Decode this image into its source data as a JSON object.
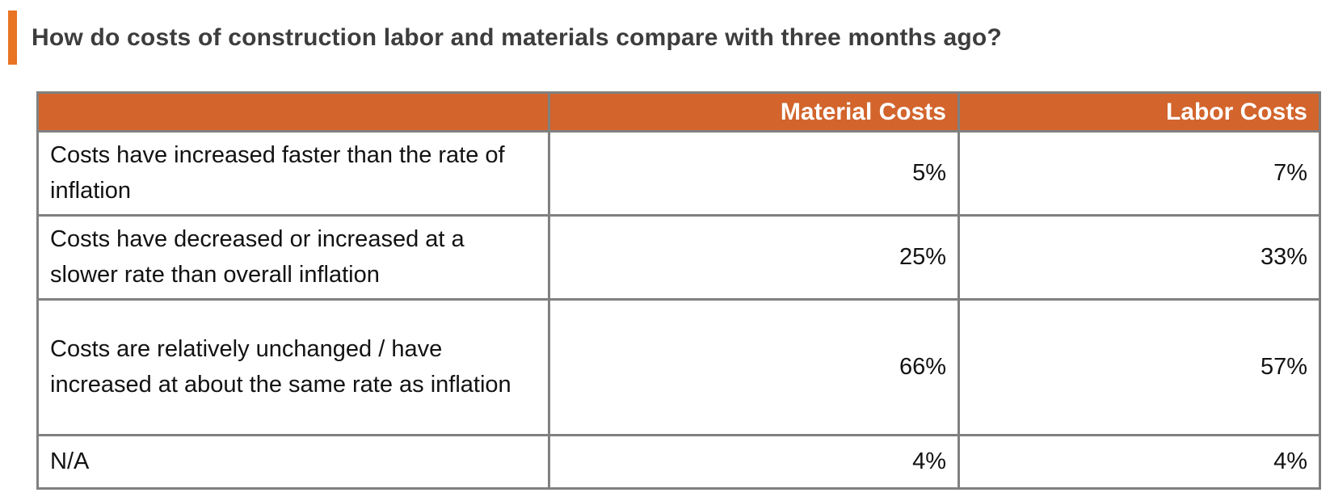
{
  "title": "How do costs of construction labor and materials compare with three months ago?",
  "colors": {
    "accent_bar": "#E87424",
    "header_background": "#D2642C",
    "header_text": "#FFFFFF",
    "table_border": "#808080",
    "body_text": "#121212",
    "title_text": "#3D3D3D"
  },
  "table": {
    "columns": [
      "",
      "Material Costs",
      "Labor Costs"
    ],
    "rows": [
      {
        "label": "Costs have increased faster than the rate of inflation",
        "material": "5%",
        "labor": "7%"
      },
      {
        "label": "Costs have decreased or increased at a slower rate than overall inflation",
        "material": "25%",
        "labor": "33%"
      },
      {
        "label": "Costs are relatively unchanged / have increased at about the same rate as inflation",
        "material": "66%",
        "labor": "57%"
      },
      {
        "label": "N/A",
        "material": "4%",
        "labor": "4%"
      }
    ]
  },
  "chart_data": {
    "type": "table",
    "title": "How do costs of construction labor and materials compare with three months ago?",
    "categories": [
      "Costs have increased faster than the rate of inflation",
      "Costs have decreased or increased at a slower rate than overall inflation",
      "Costs are relatively unchanged / have increased at about the same rate as inflation",
      "N/A"
    ],
    "series": [
      {
        "name": "Material Costs",
        "values": [
          5,
          25,
          66,
          4
        ]
      },
      {
        "name": "Labor Costs",
        "values": [
          7,
          33,
          57,
          4
        ]
      }
    ],
    "unit": "%"
  }
}
